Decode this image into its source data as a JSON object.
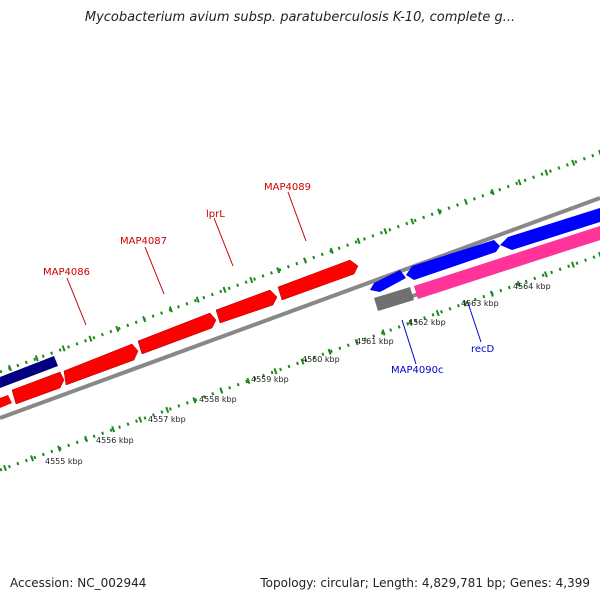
{
  "title": "Mycobacterium avium subsp. paratuberculosis K-10, complete g...",
  "footer": {
    "accession": "Accession: NC_002944",
    "summary": "Topology: circular; Length: 4,829,781 bp; Genes: 4,399"
  },
  "colors": {
    "forward_gene": "#ff0000",
    "reverse_gene": "#0000ff",
    "dark_gene": "#000080",
    "pink_gene": "#ff3399",
    "gray_gene": "#707070",
    "backbone": "#888888",
    "tick": "#1a8a1a",
    "label_red": "#cc0000",
    "label_blue": "#0000cc"
  },
  "scale": {
    "ticks": [
      {
        "kbp": 4555,
        "label": "4555 kbp"
      },
      {
        "kbp": 4556,
        "label": "4556 kbp"
      },
      {
        "kbp": 4557,
        "label": "4557 kbp"
      },
      {
        "kbp": 4558,
        "label": "4558 kbp"
      },
      {
        "kbp": 4559,
        "label": "4559 kbp"
      },
      {
        "kbp": 4560,
        "label": "4560 kbp"
      },
      {
        "kbp": 4561,
        "label": "4561 kbp"
      },
      {
        "kbp": 4562,
        "label": "4562 kbp"
      },
      {
        "kbp": 4563,
        "label": "4563 kbp"
      },
      {
        "kbp": 4564,
        "label": "4564 kbp"
      }
    ]
  },
  "gene_labels": [
    {
      "name": "MAP4086",
      "strand": "forward"
    },
    {
      "name": "MAP4087",
      "strand": "forward"
    },
    {
      "name": "lprL",
      "strand": "forward"
    },
    {
      "name": "MAP4089",
      "strand": "forward"
    },
    {
      "name": "MAP4090c",
      "strand": "reverse"
    },
    {
      "name": "recD",
      "strand": "reverse"
    }
  ]
}
